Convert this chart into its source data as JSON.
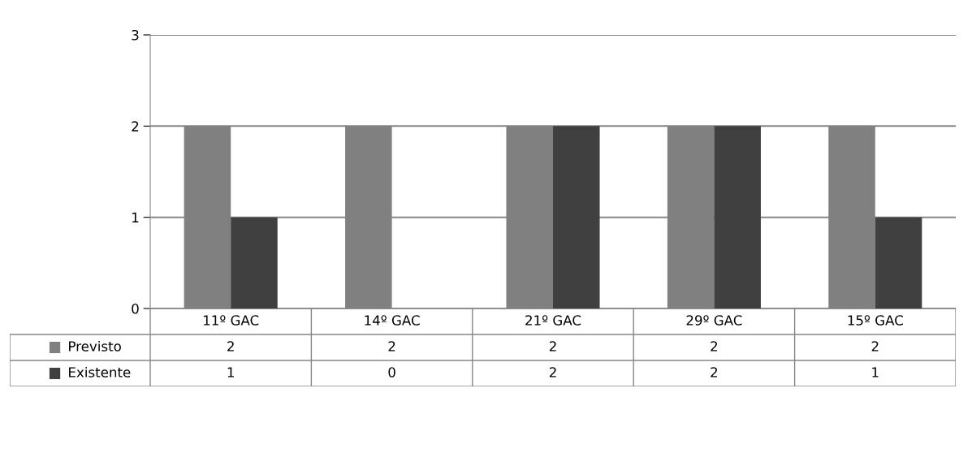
{
  "chart_data": {
    "type": "bar",
    "categories": [
      "11º GAC",
      "14º GAC",
      "21º GAC",
      "29º GAC",
      "15º GAC"
    ],
    "series": [
      {
        "name": "Previsto",
        "color": "#808080",
        "values": [
          2,
          2,
          2,
          2,
          2
        ]
      },
      {
        "name": "Existente",
        "color": "#404040",
        "values": [
          1,
          0,
          2,
          2,
          1
        ]
      }
    ],
    "ylim": [
      0,
      3
    ],
    "yticks": [
      0,
      1,
      2,
      3
    ],
    "grid": "y",
    "legend": "bottom",
    "data_labels": true
  }
}
